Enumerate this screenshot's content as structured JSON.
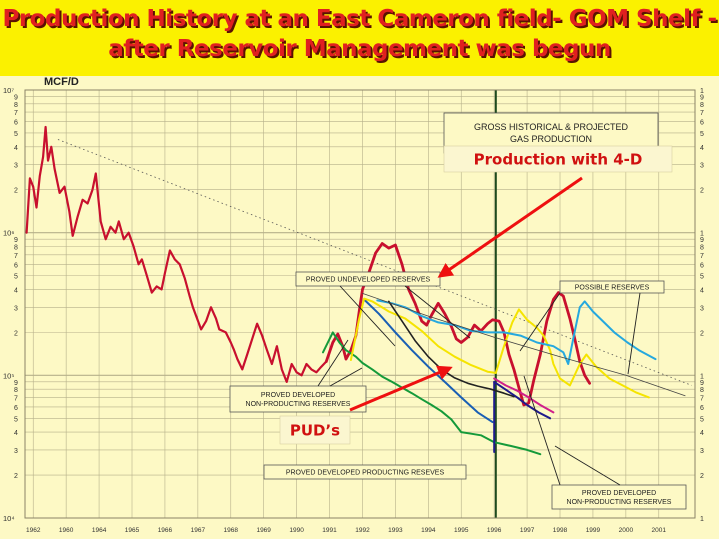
{
  "title_lines": [
    "Production History at an East Cameron field- GOM Shelf -",
    "after Reservoir Management was begun"
  ],
  "colors": {
    "banner": "#fbf100",
    "title": "#e02020",
    "background": "#fdf9c5",
    "history": "#c8102e",
    "pdp": "#159a3a",
    "pud_blue": "#1a5fb4",
    "yellow": "#f5e400",
    "cyan": "#26a8de",
    "magenta": "#d0208a",
    "navy": "#1f1a8c",
    "grid": "#b6b08a",
    "arrow": "#ee1010",
    "callout_text": "#d01010"
  },
  "chart_data": {
    "type": "line",
    "ylabel": "MCF/D",
    "y_scale": "log",
    "ylim": [
      10000,
      10000000
    ],
    "xlim": [
      1961.5,
      2002.2
    ],
    "x_tick_labels": [
      {
        "x": 1962,
        "label": "1962"
      },
      {
        "x": 1964,
        "label": "1960"
      },
      {
        "x": 1966,
        "label": "1964"
      },
      {
        "x": 1968,
        "label": "1965"
      },
      {
        "x": 1970,
        "label": "1966"
      },
      {
        "x": 1972,
        "label": "1967"
      },
      {
        "x": 1974,
        "label": "1968"
      },
      {
        "x": 1976,
        "label": "1969"
      },
      {
        "x": 1978,
        "label": "1990"
      },
      {
        "x": 1980,
        "label": "1991"
      },
      {
        "x": 1982,
        "label": "1992"
      },
      {
        "x": 1984,
        "label": "1993"
      },
      {
        "x": 1986,
        "label": "1994"
      },
      {
        "x": 1988,
        "label": "1995"
      },
      {
        "x": 1990,
        "label": "1996"
      },
      {
        "x": 1992,
        "label": "1997"
      },
      {
        "x": 1994,
        "label": "1998"
      },
      {
        "x": 1996,
        "label": "1999"
      },
      {
        "x": 1998,
        "label": "2000"
      },
      {
        "x": 2000,
        "label": "2001"
      }
    ],
    "y_decade_labels": [
      {
        "y": 10000000,
        "label": "10⁷"
      },
      {
        "y": 1000000,
        "label": "10⁶"
      },
      {
        "y": 100000,
        "label": "10⁵"
      },
      {
        "y": 10000,
        "label": "10⁴"
      }
    ],
    "y_minor_digits": [
      2,
      3,
      4,
      5,
      6,
      7,
      8,
      9
    ],
    "vline_x": 1990.1,
    "series": [
      {
        "key": "history",
        "color": "#c8102e",
        "width": 2.2,
        "points": [
          [
            1961.6,
            1000000
          ],
          [
            1961.8,
            2400000
          ],
          [
            1962.0,
            2100000
          ],
          [
            1962.2,
            1500000
          ],
          [
            1962.4,
            2500000
          ],
          [
            1962.6,
            3400000
          ],
          [
            1962.75,
            5500000
          ],
          [
            1962.9,
            3200000
          ],
          [
            1963.1,
            4000000
          ],
          [
            1963.3,
            2800000
          ],
          [
            1963.6,
            1900000
          ],
          [
            1963.9,
            2100000
          ],
          [
            1964.2,
            1400000
          ],
          [
            1964.4,
            950000
          ],
          [
            1964.7,
            1300000
          ],
          [
            1965.0,
            1700000
          ],
          [
            1965.3,
            1600000
          ],
          [
            1965.6,
            2000000
          ],
          [
            1965.8,
            2600000
          ],
          [
            1966.1,
            1200000
          ],
          [
            1966.4,
            900000
          ],
          [
            1966.7,
            1100000
          ],
          [
            1967.0,
            1000000
          ],
          [
            1967.2,
            1200000
          ],
          [
            1967.5,
            900000
          ],
          [
            1967.8,
            1000000
          ],
          [
            1968.1,
            800000
          ],
          [
            1968.4,
            600000
          ],
          [
            1968.6,
            650000
          ],
          [
            1968.9,
            500000
          ],
          [
            1969.2,
            380000
          ],
          [
            1969.5,
            420000
          ],
          [
            1969.8,
            400000
          ],
          [
            1970.0,
            520000
          ],
          [
            1970.3,
            750000
          ],
          [
            1970.6,
            650000
          ],
          [
            1970.9,
            600000
          ],
          [
            1971.2,
            480000
          ],
          [
            1971.5,
            360000
          ],
          [
            1971.7,
            300000
          ],
          [
            1971.9,
            260000
          ],
          [
            1972.2,
            210000
          ],
          [
            1972.5,
            240000
          ],
          [
            1972.8,
            300000
          ],
          [
            1973.1,
            250000
          ],
          [
            1973.3,
            210000
          ],
          [
            1973.7,
            200000
          ],
          [
            1974.0,
            170000
          ],
          [
            1974.2,
            150000
          ],
          [
            1974.4,
            130000
          ],
          [
            1974.7,
            110000
          ],
          [
            1975.0,
            140000
          ],
          [
            1975.3,
            180000
          ],
          [
            1975.6,
            230000
          ],
          [
            1975.9,
            190000
          ],
          [
            1976.2,
            150000
          ],
          [
            1976.5,
            120000
          ],
          [
            1976.8,
            160000
          ],
          [
            1977.1,
            110000
          ],
          [
            1977.4,
            90000
          ],
          [
            1977.7,
            120000
          ],
          [
            1978.0,
            105000
          ],
          [
            1978.3,
            100000
          ],
          [
            1978.6,
            120000
          ],
          [
            1978.9,
            110000
          ],
          [
            1979.2,
            105000
          ],
          [
            1979.5,
            115000
          ],
          [
            1979.8,
            125000
          ]
        ]
      },
      {
        "key": "history_4d",
        "color": "#c8102e",
        "width": 2.8,
        "points": [
          [
            1979.8,
            125000
          ],
          [
            1980.2,
            170000
          ],
          [
            1980.5,
            195000
          ],
          [
            1980.8,
            160000
          ],
          [
            1981.0,
            130000
          ],
          [
            1981.3,
            150000
          ],
          [
            1981.6,
            190000
          ],
          [
            1981.8,
            280000
          ],
          [
            1982.0,
            400000
          ],
          [
            1982.4,
            530000
          ],
          [
            1982.8,
            720000
          ],
          [
            1983.2,
            840000
          ],
          [
            1983.6,
            780000
          ],
          [
            1984.0,
            820000
          ],
          [
            1984.4,
            600000
          ],
          [
            1984.8,
            400000
          ],
          [
            1985.2,
            320000
          ],
          [
            1985.6,
            240000
          ],
          [
            1985.9,
            225000
          ],
          [
            1986.2,
            265000
          ],
          [
            1986.6,
            320000
          ],
          [
            1987.0,
            270000
          ],
          [
            1987.4,
            220000
          ],
          [
            1987.7,
            180000
          ],
          [
            1988.0,
            170000
          ],
          [
            1988.4,
            185000
          ],
          [
            1988.8,
            225000
          ],
          [
            1989.2,
            205000
          ],
          [
            1989.6,
            230000
          ],
          [
            1989.9,
            245000
          ],
          [
            1990.3,
            240000
          ],
          [
            1990.6,
            200000
          ],
          [
            1990.9,
            140000
          ],
          [
            1991.2,
            110000
          ],
          [
            1991.5,
            82000
          ],
          [
            1991.8,
            62000
          ],
          [
            1992.1,
            64000
          ],
          [
            1992.4,
            92000
          ],
          [
            1992.8,
            140000
          ],
          [
            1993.2,
            240000
          ],
          [
            1993.6,
            340000
          ],
          [
            1993.9,
            380000
          ],
          [
            1994.2,
            360000
          ],
          [
            1994.6,
            250000
          ],
          [
            1994.9,
            180000
          ],
          [
            1995.2,
            125000
          ],
          [
            1995.5,
            100000
          ],
          [
            1995.8,
            88000
          ]
        ]
      },
      {
        "key": "pdp",
        "color": "#159a3a",
        "width": 2,
        "points": [
          [
            1979.6,
            145000
          ],
          [
            1980.2,
            200000
          ],
          [
            1980.6,
            170000
          ],
          [
            1981.0,
            150000
          ],
          [
            1981.6,
            135000
          ],
          [
            1982.0,
            122000
          ],
          [
            1982.6,
            110000
          ],
          [
            1983.2,
            98000
          ],
          [
            1983.8,
            90000
          ],
          [
            1984.4,
            82000
          ],
          [
            1985.0,
            75000
          ],
          [
            1985.6,
            68000
          ],
          [
            1986.2,
            62000
          ],
          [
            1986.8,
            56000
          ],
          [
            1987.4,
            49000
          ],
          [
            1988.0,
            40000
          ],
          [
            1988.6,
            39000
          ],
          [
            1989.2,
            38000
          ],
          [
            1990.0,
            34000
          ],
          [
            1991.0,
            32000
          ],
          [
            1992.0,
            30000
          ],
          [
            1992.8,
            28000
          ]
        ]
      },
      {
        "key": "pud_blue",
        "color": "#1a5fb4",
        "width": 2,
        "points": [
          [
            1982.1,
            340000
          ],
          [
            1983.0,
            270000
          ],
          [
            1984.0,
            200000
          ],
          [
            1985.0,
            150000
          ],
          [
            1986.0,
            115000
          ],
          [
            1987.0,
            90000
          ],
          [
            1988.0,
            70000
          ],
          [
            1989.0,
            55000
          ],
          [
            1989.9,
            47000
          ]
        ]
      },
      {
        "key": "yellow_a",
        "color": "#f5e400",
        "width": 2,
        "points": [
          [
            1981.3,
            128000
          ],
          [
            1981.8,
            250000
          ],
          [
            1982.1,
            345000
          ],
          [
            1982.6,
            330000
          ],
          [
            1983.6,
            280000
          ],
          [
            1984.6,
            250000
          ],
          [
            1985.6,
            205000
          ],
          [
            1986.6,
            160000
          ],
          [
            1987.6,
            135000
          ],
          [
            1988.6,
            118000
          ],
          [
            1989.6,
            106000
          ],
          [
            1990.1,
            104000
          ]
        ]
      },
      {
        "key": "yellow_b",
        "color": "#f5e400",
        "width": 2,
        "points": [
          [
            1990.1,
            104000
          ],
          [
            1990.6,
            160000
          ],
          [
            1991.1,
            235000
          ],
          [
            1991.5,
            290000
          ],
          [
            1992.0,
            245000
          ],
          [
            1992.6,
            215000
          ],
          [
            1993.0,
            190000
          ],
          [
            1993.4,
            150000
          ],
          [
            1993.6,
            120000
          ],
          [
            1994.0,
            95000
          ],
          [
            1994.6,
            85000
          ],
          [
            1995.2,
            120000
          ],
          [
            1995.6,
            140000
          ],
          [
            1996.2,
            115000
          ],
          [
            1997.0,
            95000
          ],
          [
            1997.8,
            85000
          ],
          [
            1998.6,
            76000
          ],
          [
            1999.4,
            70000
          ]
        ]
      },
      {
        "key": "cyan",
        "color": "#26a8de",
        "width": 2,
        "points": [
          [
            1982.9,
            335000
          ],
          [
            1983.8,
            320000
          ],
          [
            1984.6,
            300000
          ],
          [
            1985.6,
            260000
          ],
          [
            1986.6,
            235000
          ],
          [
            1987.6,
            225000
          ],
          [
            1988.6,
            205000
          ],
          [
            1989.6,
            200000
          ],
          [
            1990.6,
            200000
          ],
          [
            1991.6,
            190000
          ],
          [
            1992.6,
            170000
          ],
          [
            1993.6,
            160000
          ],
          [
            1994.2,
            145000
          ],
          [
            1994.5,
            120000
          ],
          [
            1994.8,
            180000
          ],
          [
            1995.2,
            300000
          ],
          [
            1995.5,
            330000
          ],
          [
            1996.0,
            280000
          ],
          [
            1996.6,
            240000
          ],
          [
            1997.3,
            200000
          ],
          [
            1998.1,
            170000
          ],
          [
            1998.8,
            150000
          ],
          [
            1999.8,
            130000
          ]
        ]
      },
      {
        "key": "magenta",
        "color": "#d0208a",
        "width": 2,
        "points": [
          [
            1990.0,
            95000
          ],
          [
            1990.7,
            85000
          ],
          [
            1991.4,
            78000
          ],
          [
            1992.1,
            70000
          ],
          [
            1992.8,
            62000
          ],
          [
            1993.6,
            55000
          ]
        ]
      },
      {
        "key": "navy_drop",
        "color": "#1f1a8c",
        "width": 2,
        "points": [
          [
            1990.0,
            29000
          ],
          [
            1990.0,
            90000
          ]
        ]
      },
      {
        "key": "navy",
        "color": "#1f1a8c",
        "width": 2,
        "points": [
          [
            1990.0,
            90000
          ],
          [
            1990.8,
            78000
          ],
          [
            1991.4,
            70000
          ],
          [
            1992.0,
            62000
          ],
          [
            1992.7,
            55000
          ],
          [
            1993.4,
            50000
          ]
        ]
      },
      {
        "key": "black_decline",
        "color": "#222",
        "width": 1.6,
        "points": [
          [
            1983.6,
            330000
          ],
          [
            1984.4,
            240000
          ],
          [
            1985.2,
            175000
          ],
          [
            1986.0,
            135000
          ],
          [
            1986.8,
            110000
          ],
          [
            1987.6,
            96000
          ],
          [
            1988.4,
            88000
          ],
          [
            1989.0,
            84000
          ],
          [
            1989.8,
            80000
          ],
          [
            1990.6,
            75000
          ],
          [
            1991.2,
            71000
          ]
        ]
      },
      {
        "key": "thin_trend",
        "color": "#444",
        "width": 0.8,
        "points": [
          [
            1982.0,
            375000
          ],
          [
            1986.0,
            260000
          ],
          [
            1990.0,
            185000
          ],
          [
            1994.0,
            135000
          ],
          [
            1998.0,
            100000
          ],
          [
            2001.6,
            72000
          ]
        ]
      }
    ],
    "dotted_trend": [
      [
        1963.5,
        4500000
      ],
      [
        2002.0,
        85000
      ]
    ],
    "box_labels": [
      {
        "key": "gross",
        "lines": [
          "GROSS HISTORICAL & PROJECTED",
          "GAS PRODUCTION"
        ]
      },
      {
        "key": "pur",
        "lines": [
          "PROVED UNDEVELOPED RESERVES"
        ]
      },
      {
        "key": "poss",
        "lines": [
          "POSSIBLE RESERVES"
        ]
      },
      {
        "key": "pdnp_left",
        "lines": [
          "PROVED DEVELOPED",
          "NON-PRODUCTING RESERVES"
        ]
      },
      {
        "key": "pdp",
        "lines": [
          "PROVED DEVELOPED PRODUCTING RESEVES"
        ]
      },
      {
        "key": "pdnp_right",
        "lines": [
          "PROVED DEVELOPED",
          "NON-PRODUCTING RESERVES"
        ]
      }
    ],
    "callouts": [
      {
        "key": "production_4d",
        "text": "Production with 4-D"
      },
      {
        "key": "puds",
        "text": "PUD’s"
      }
    ]
  }
}
